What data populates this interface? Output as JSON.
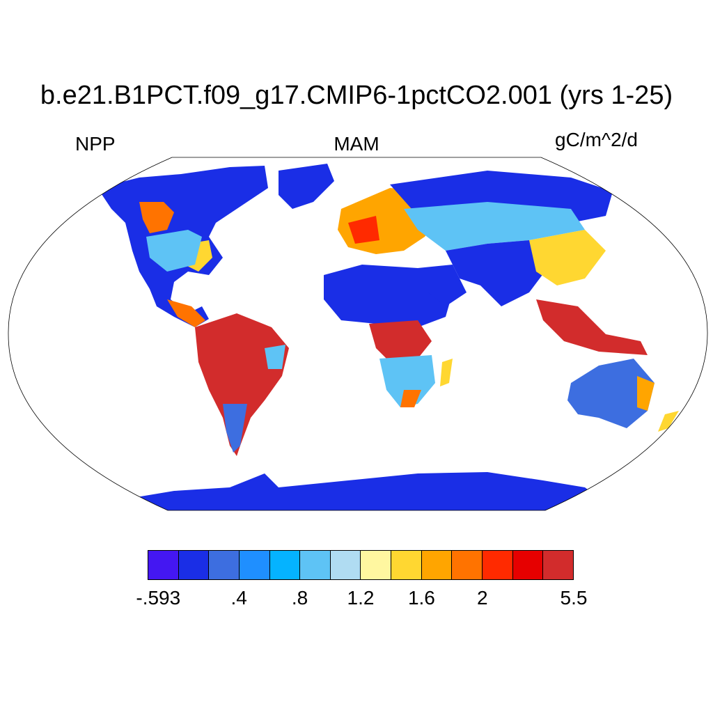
{
  "title": "b.e21.B1PCT.f09_g17.CMIP6-1pctCO2.001 (yrs 1-25)",
  "left_string": "NPP",
  "center_string": "MAM",
  "right_string": "gC/m^2/d",
  "colorbar": {
    "colors": [
      "#4417f2",
      "#1a2ee6",
      "#3d6ee0",
      "#1f8fff",
      "#05b3ff",
      "#5ec3f5",
      "#b0dcf2",
      "#fff7a0",
      "#ffd731",
      "#ffa500",
      "#ff7300",
      "#ff2a00",
      "#e60000",
      "#d22c2c"
    ],
    "labels": [
      "-.593",
      ".4",
      ".8",
      "1.2",
      "1.6",
      "2",
      "5.5"
    ]
  },
  "map": {
    "projection": "Robinson",
    "variable": "NPP",
    "land_fill_colors": {
      "low": "#1a2ee6",
      "polar": "#1a2ee6",
      "desert": "#1a2ee6",
      "mid": "#3d6ee0",
      "light": "#5ec3f5",
      "yellow": "#ffd731",
      "orange": "#ffa500",
      "high": "#d22c2c",
      "red": "#ff2a00"
    }
  }
}
